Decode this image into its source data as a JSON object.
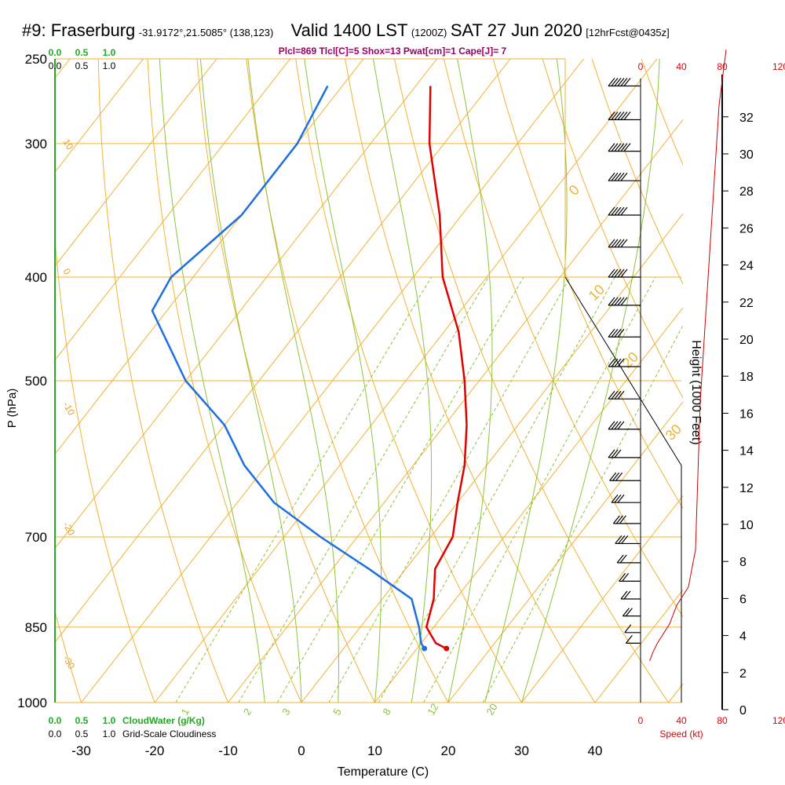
{
  "header": {
    "station": "#9: Fraserburg",
    "coords": "-31.9172°,21.5085° (138,123)",
    "valid": "Valid 1400 LST",
    "zulu": "(1200Z)",
    "date": "SAT 27 Jun 2020",
    "forecast": "[12hrFcst@0435z]",
    "params": "Plcl=869 Tlcl[C]=5 Shox=13 Pwat[cm]=1 Cape[J]= 7"
  },
  "chart_data": {
    "type": "line",
    "subtype": "skew-T log-P sounding",
    "xlabel": "Temperature (C)",
    "ylabel": "P (hPa)",
    "y2label": "Height (1000 Feet)",
    "x_ticks": [
      "-30",
      "-20",
      "-10",
      "0",
      "10",
      "20",
      "30",
      "40"
    ],
    "pressure_ticks": [
      "250",
      "300",
      "400",
      "500",
      "700",
      "850",
      "1000"
    ],
    "height_ticks": [
      "0",
      "2",
      "4",
      "6",
      "8",
      "10",
      "12",
      "14",
      "16",
      "18",
      "20",
      "22",
      "24",
      "26",
      "28",
      "30",
      "32"
    ],
    "dry_adiabat_labels": [
      "10",
      "0",
      "-10",
      "-20",
      "-30"
    ],
    "mixing_ratio_labels": [
      "1",
      "2",
      "3",
      "5",
      "8",
      "12",
      "20"
    ],
    "other_isotherm_labels": [
      "0",
      "10",
      "20",
      "30"
    ],
    "cloud_water_ticks": [
      "0.0",
      "0.5",
      "1.0"
    ],
    "cloudiness_ticks": [
      "0.0",
      "0.5",
      "1.0"
    ],
    "cloud_water_label": "CloudWater (g/Kg)",
    "cloudiness_label": "Grid-Scale Cloudiness",
    "wind_speed_ticks": [
      "0",
      "40",
      "80",
      "120"
    ],
    "wind_speed_label": "Speed (kt)",
    "series": [
      {
        "name": "Temperature",
        "color": "#e00000",
        "points": [
          [
            265,
            -48
          ],
          [
            300,
            -42
          ],
          [
            350,
            -33
          ],
          [
            400,
            -26
          ],
          [
            450,
            -18
          ],
          [
            500,
            -12
          ],
          [
            550,
            -7
          ],
          [
            600,
            -3
          ],
          [
            650,
            0
          ],
          [
            700,
            3
          ],
          [
            750,
            4
          ],
          [
            800,
            7
          ],
          [
            850,
            9
          ],
          [
            880,
            12
          ],
          [
            890,
            14
          ]
        ]
      },
      {
        "name": "Dewpoint",
        "color": "#1e6fe0",
        "points": [
          [
            265,
            -62
          ],
          [
            300,
            -60
          ],
          [
            350,
            -60
          ],
          [
            400,
            -63
          ],
          [
            430,
            -62
          ],
          [
            500,
            -50
          ],
          [
            550,
            -40
          ],
          [
            600,
            -33
          ],
          [
            650,
            -25
          ],
          [
            700,
            -15
          ],
          [
            750,
            -5
          ],
          [
            800,
            4
          ],
          [
            850,
            8
          ],
          [
            880,
            10
          ],
          [
            890,
            11
          ]
        ]
      }
    ],
    "winds": [
      {
        "p": 265,
        "speed": 55
      },
      {
        "p": 285,
        "speed": 55
      },
      {
        "p": 305,
        "speed": 55
      },
      {
        "p": 325,
        "speed": 50
      },
      {
        "p": 350,
        "speed": 50
      },
      {
        "p": 375,
        "speed": 45
      },
      {
        "p": 400,
        "speed": 45
      },
      {
        "p": 425,
        "speed": 45
      },
      {
        "p": 455,
        "speed": 40
      },
      {
        "p": 485,
        "speed": 40
      },
      {
        "p": 520,
        "speed": 35
      },
      {
        "p": 555,
        "speed": 35
      },
      {
        "p": 590,
        "speed": 30
      },
      {
        "p": 620,
        "speed": 30
      },
      {
        "p": 650,
        "speed": 25
      },
      {
        "p": 680,
        "speed": 25
      },
      {
        "p": 710,
        "speed": 25
      },
      {
        "p": 740,
        "speed": 20
      },
      {
        "p": 770,
        "speed": 20
      },
      {
        "p": 800,
        "speed": 15
      },
      {
        "p": 830,
        "speed": 15
      },
      {
        "p": 860,
        "speed": 10
      },
      {
        "p": 880,
        "speed": 10
      }
    ],
    "wind_speed_profile": [
      [
        0,
        5
      ],
      [
        0.5,
        8
      ],
      [
        1,
        12
      ],
      [
        2,
        22
      ],
      [
        3,
        28
      ],
      [
        4,
        38
      ],
      [
        6,
        44
      ],
      [
        10,
        46
      ],
      [
        14,
        48
      ],
      [
        18,
        52
      ],
      [
        22,
        56
      ],
      [
        26,
        60
      ],
      [
        30,
        64
      ],
      [
        33,
        70
      ]
    ]
  }
}
